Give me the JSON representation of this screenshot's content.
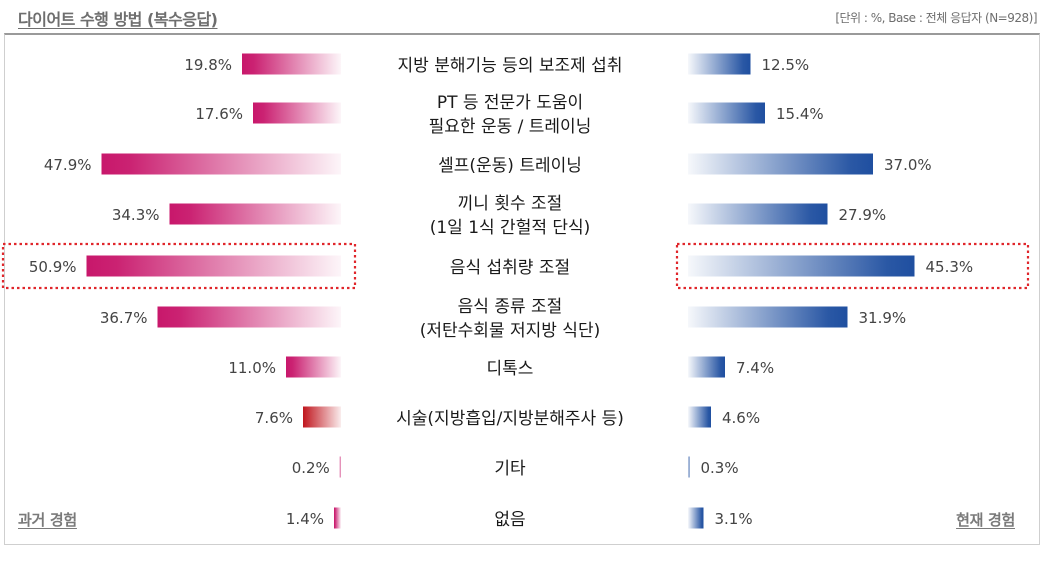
{
  "title": "다이어트 수행 방법 (복수응답)",
  "base_note": "[단위 : %, Base : 전체 응답자 (N=928)]",
  "colors": {
    "past": "#c8176b",
    "past_alt": "#c0161e",
    "present": "#1f4fa0",
    "highlight": "#e0262b"
  },
  "chart_data": {
    "type": "bar",
    "legend_left": "과거 경험",
    "legend_right": "현재 경험",
    "categories": [
      [
        "지방 분해기능 등의 보조제 섭취"
      ],
      [
        "PT 등 전문가 도움이",
        "필요한 운동 / 트레이닝"
      ],
      [
        "셀프(운동) 트레이닝"
      ],
      [
        "끼니 횟수 조절",
        "(1일 1식 간헐적 단식)"
      ],
      [
        "음식 섭취량 조절"
      ],
      [
        "음식 종류 조절",
        "(저탄수회물 저지방 식단)"
      ],
      [
        "디톡스"
      ],
      [
        "시술(지방흡입/지방분해주사 등)"
      ],
      [
        "기타"
      ],
      [
        "없음"
      ]
    ],
    "series": [
      {
        "name": "과거 경험",
        "values": [
          19.8,
          17.6,
          47.9,
          34.3,
          50.9,
          36.7,
          11.0,
          7.6,
          0.2,
          1.4
        ],
        "labels": [
          "19.8%",
          "17.6%",
          "47.9%",
          "34.3%",
          "50.9%",
          "36.7%",
          "11.0%",
          "7.6%",
          "0.2%",
          "1.4%"
        ]
      },
      {
        "name": "현재 경험",
        "values": [
          12.5,
          15.4,
          37.0,
          27.9,
          45.3,
          31.9,
          7.4,
          4.6,
          0.3,
          3.1
        ],
        "labels": [
          "12.5%",
          "15.4%",
          "37.0%",
          "27.9%",
          "45.3%",
          "31.9%",
          "7.4%",
          "4.6%",
          "0.3%",
          "3.1%"
        ]
      }
    ],
    "highlighted_category_index": 4,
    "xlim": [
      0,
      51
    ]
  }
}
